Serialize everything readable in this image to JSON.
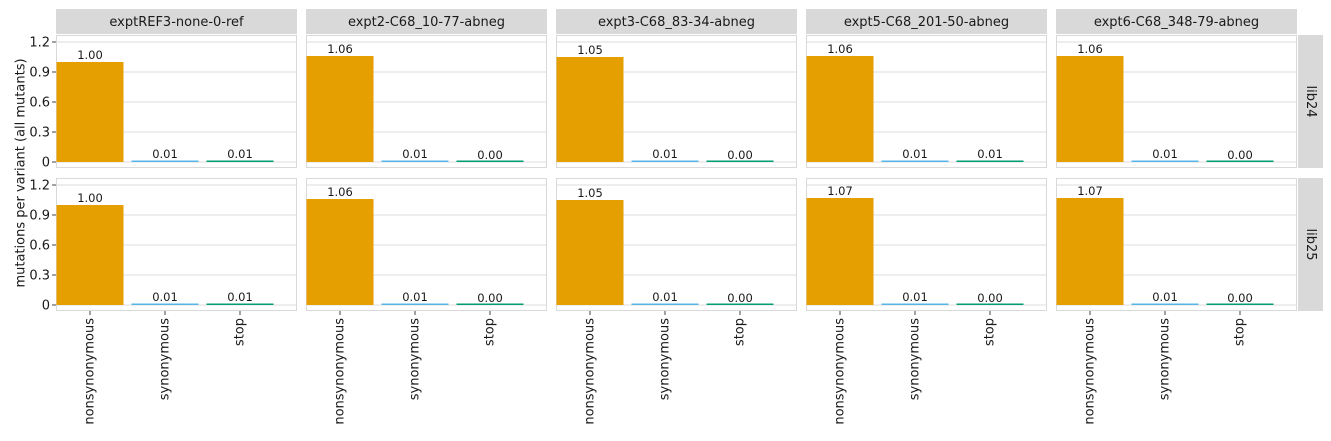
{
  "chart_data": {
    "type": "bar",
    "ylabel": "mutations per variant (all mutants)",
    "ylim": [
      0,
      1.25
    ],
    "yticks": [
      0,
      0.3,
      0.6,
      0.9,
      1.2
    ],
    "ytick_labels": [
      "0",
      "0.3",
      "0.6",
      "0.9",
      "1.2"
    ],
    "categories": [
      "nonsynonymous",
      "synonymous",
      "stop"
    ],
    "colors": {
      "nonsynonymous": "#E69F00",
      "synonymous": "#56B4E9",
      "stop": "#009E73"
    },
    "columns": [
      "exptREF3-none-0-ref",
      "expt2-C68_10-77-abneg",
      "expt3-C68_83-34-abneg",
      "expt5-C68_201-50-abneg",
      "expt6-C68_348-79-abneg"
    ],
    "rows": [
      "lib24",
      "lib25"
    ],
    "panels": [
      {
        "row": "lib24",
        "column": "exptREF3-none-0-ref",
        "values": [
          1.0,
          0.01,
          0.01
        ],
        "labels": [
          "1.00",
          "0.01",
          "0.01"
        ]
      },
      {
        "row": "lib24",
        "column": "expt2-C68_10-77-abneg",
        "values": [
          1.06,
          0.01,
          0.0
        ],
        "labels": [
          "1.06",
          "0.01",
          "0.00"
        ]
      },
      {
        "row": "lib24",
        "column": "expt3-C68_83-34-abneg",
        "values": [
          1.05,
          0.01,
          0.0
        ],
        "labels": [
          "1.05",
          "0.01",
          "0.00"
        ]
      },
      {
        "row": "lib24",
        "column": "expt5-C68_201-50-abneg",
        "values": [
          1.06,
          0.01,
          0.01
        ],
        "labels": [
          "1.06",
          "0.01",
          "0.01"
        ]
      },
      {
        "row": "lib24",
        "column": "expt6-C68_348-79-abneg",
        "values": [
          1.06,
          0.01,
          0.0
        ],
        "labels": [
          "1.06",
          "0.01",
          "0.00"
        ]
      },
      {
        "row": "lib25",
        "column": "exptREF3-none-0-ref",
        "values": [
          1.0,
          0.01,
          0.01
        ],
        "labels": [
          "1.00",
          "0.01",
          "0.01"
        ]
      },
      {
        "row": "lib25",
        "column": "expt2-C68_10-77-abneg",
        "values": [
          1.06,
          0.01,
          0.0
        ],
        "labels": [
          "1.06",
          "0.01",
          "0.00"
        ]
      },
      {
        "row": "lib25",
        "column": "expt3-C68_83-34-abneg",
        "values": [
          1.05,
          0.01,
          0.0
        ],
        "labels": [
          "1.05",
          "0.01",
          "0.00"
        ]
      },
      {
        "row": "lib25",
        "column": "expt5-C68_201-50-abneg",
        "values": [
          1.07,
          0.01,
          0.0
        ],
        "labels": [
          "1.07",
          "0.01",
          "0.00"
        ]
      },
      {
        "row": "lib25",
        "column": "expt6-C68_348-79-abneg",
        "values": [
          1.07,
          0.01,
          0.0
        ],
        "labels": [
          "1.07",
          "0.01",
          "0.00"
        ]
      }
    ]
  }
}
